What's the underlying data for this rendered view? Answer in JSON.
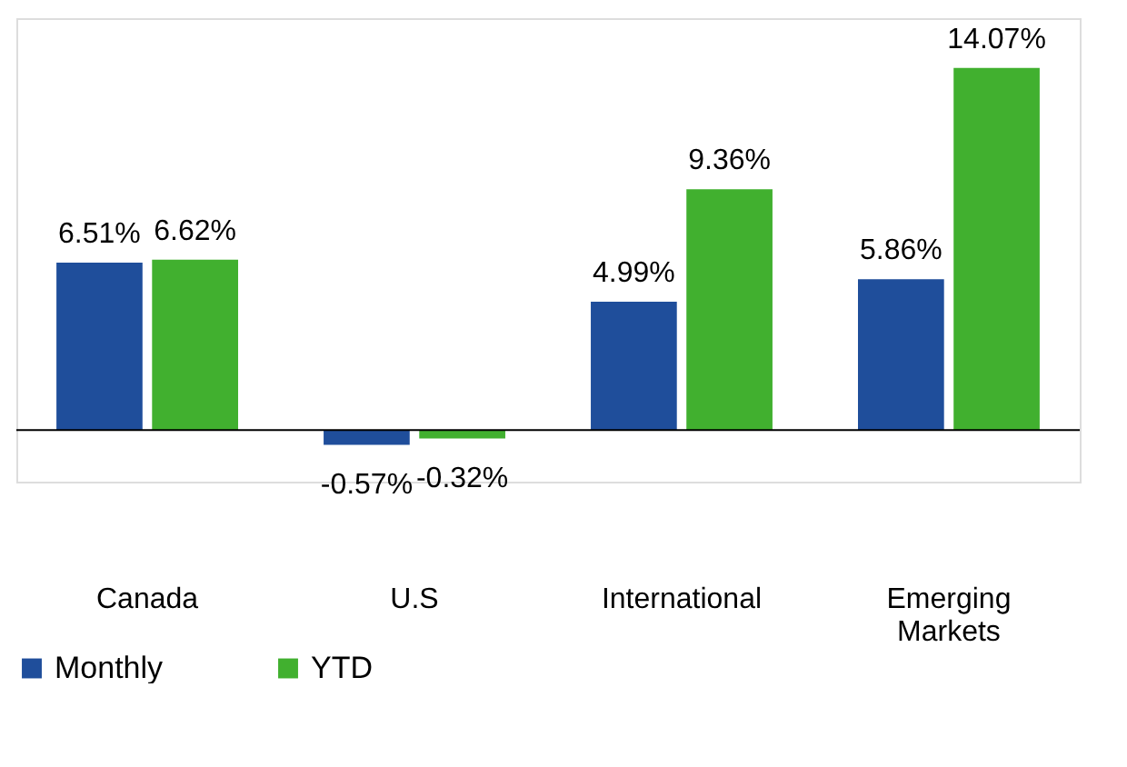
{
  "chart_data": {
    "type": "bar",
    "categories": [
      "Canada",
      "U.S",
      "International",
      "Emerging Markets"
    ],
    "series": [
      {
        "name": "Monthly",
        "color": "#1f4e9b",
        "values": [
          6.51,
          -0.57,
          4.99,
          5.86
        ],
        "value_labels": [
          "6.51%",
          "-0.57%",
          "4.99%",
          "5.86%"
        ]
      },
      {
        "name": "YTD",
        "color": "#41b02f",
        "values": [
          6.62,
          -0.32,
          9.36,
          14.07
        ],
        "value_labels": [
          "6.62%",
          "-0.32%",
          "9.36%",
          "14.07%"
        ]
      }
    ],
    "legend": "bottom",
    "grid": false,
    "tick_labels": "x"
  }
}
